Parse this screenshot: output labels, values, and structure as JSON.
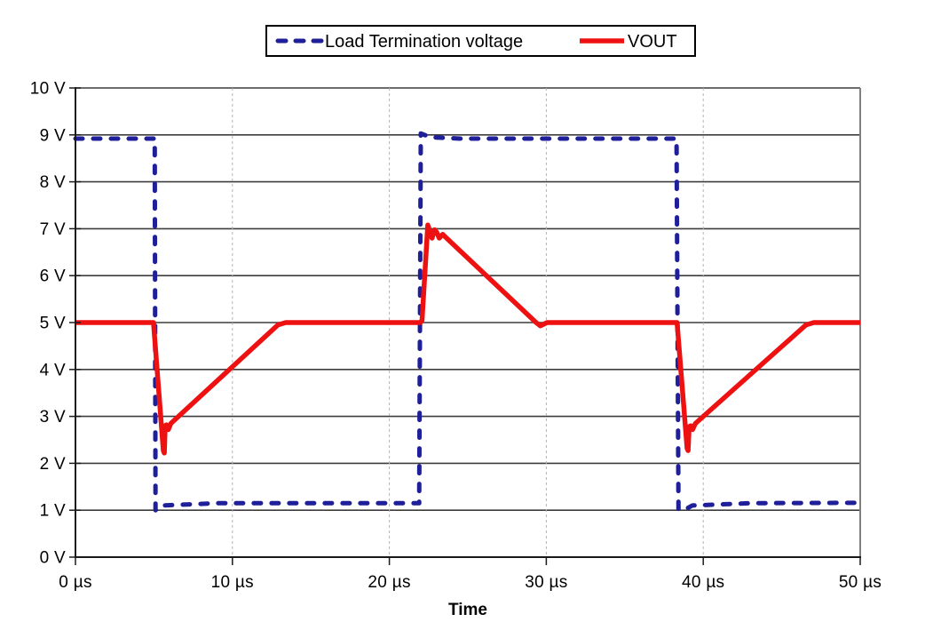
{
  "chart_data": {
    "type": "line",
    "title": "",
    "xlabel": "Time",
    "ylabel": "",
    "x_unit": "µs",
    "y_unit": "V",
    "xlim": [
      0,
      50
    ],
    "ylim": [
      0,
      10
    ],
    "x_ticks": [
      0,
      10,
      20,
      30,
      40,
      50
    ],
    "x_tick_labels": [
      "0 µs",
      "10 µs",
      "20 µs",
      "30 µs",
      "40 µs",
      "50 µs"
    ],
    "y_ticks": [
      0,
      1,
      2,
      3,
      4,
      5,
      6,
      7,
      8,
      9,
      10
    ],
    "y_tick_labels": [
      "0 V",
      "1 V",
      "2 V",
      "3 V",
      "4 V",
      "5 V",
      "6 V",
      "7 V",
      "8 V",
      "9 V",
      "10 V"
    ],
    "grid": {
      "horizontal_style": "solid",
      "horizontal_at": [
        1,
        2,
        3,
        4,
        5,
        6,
        7,
        8,
        9,
        10
      ],
      "vertical_style": "dashed",
      "vertical_at": [
        10,
        20,
        30,
        40
      ]
    },
    "legend": {
      "position": "top-center",
      "entries": [
        {
          "name": "Load Termination voltage",
          "color": "#1f1f99",
          "style": "dashed"
        },
        {
          "name": "VOUT",
          "color": "#ee1111",
          "style": "solid"
        }
      ]
    },
    "series": [
      {
        "name": "Load Termination voltage",
        "color": "#1f1f99",
        "dashed": true,
        "points": [
          [
            0,
            8.92
          ],
          [
            5.05,
            8.92
          ],
          [
            5.1,
            1.0
          ],
          [
            5.5,
            1.1
          ],
          [
            9,
            1.15
          ],
          [
            21.9,
            1.15
          ],
          [
            22.0,
            9.03
          ],
          [
            22.6,
            8.95
          ],
          [
            24.5,
            8.92
          ],
          [
            38.3,
            8.92
          ],
          [
            38.42,
            1.02
          ],
          [
            38.75,
            1.0
          ],
          [
            39.3,
            1.1
          ],
          [
            43,
            1.15
          ],
          [
            50,
            1.16
          ]
        ]
      },
      {
        "name": "VOUT",
        "color": "#ee1111",
        "dashed": false,
        "points": [
          [
            0,
            5.0
          ],
          [
            4.97,
            5.0
          ],
          [
            5.6,
            2.27
          ],
          [
            5.66,
            2.22
          ],
          [
            5.72,
            2.8
          ],
          [
            5.8,
            2.82
          ],
          [
            5.92,
            2.72
          ],
          [
            6.08,
            2.85
          ],
          [
            12.9,
            4.95
          ],
          [
            13.4,
            5.0
          ],
          [
            21.98,
            5.0
          ],
          [
            22.08,
            5.05
          ],
          [
            22.45,
            7.08
          ],
          [
            22.58,
            6.95
          ],
          [
            22.72,
            6.8
          ],
          [
            22.88,
            6.98
          ],
          [
            23.02,
            6.92
          ],
          [
            23.18,
            6.8
          ],
          [
            23.4,
            6.88
          ],
          [
            23.58,
            6.82
          ],
          [
            29.35,
            5.0
          ],
          [
            29.62,
            4.93
          ],
          [
            30.05,
            5.0
          ],
          [
            38.33,
            5.0
          ],
          [
            38.97,
            2.32
          ],
          [
            39.03,
            2.27
          ],
          [
            39.1,
            2.78
          ],
          [
            39.2,
            2.8
          ],
          [
            39.32,
            2.72
          ],
          [
            39.5,
            2.85
          ],
          [
            46.55,
            4.95
          ],
          [
            47.05,
            5.0
          ],
          [
            50,
            5.0
          ]
        ]
      }
    ],
    "colors": {
      "background": "#ffffff",
      "h_gridline": "#3d3d3d",
      "v_gridline": "#b3b3b3",
      "axis": "#1a1a1a",
      "plot_border_right": "#808080",
      "text": "#000000"
    }
  }
}
